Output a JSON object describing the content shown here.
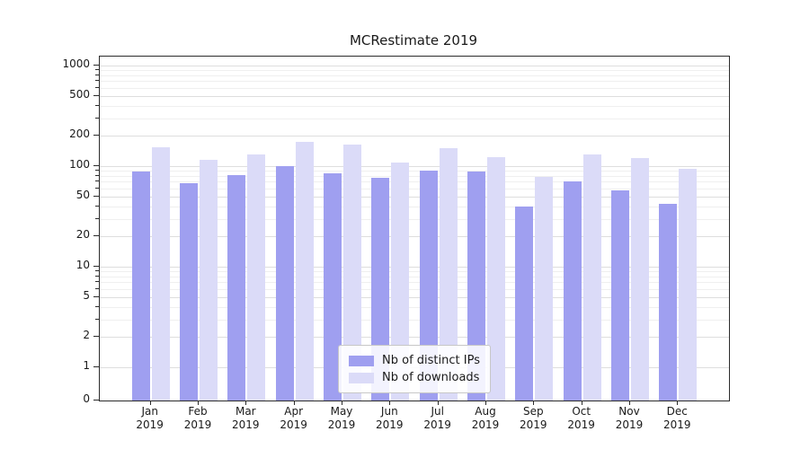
{
  "figure": {
    "title": "MCRestimate 2019",
    "background": "#ffffff"
  },
  "chart_data": {
    "type": "bar",
    "title": "MCRestimate 2019",
    "categories": [
      "Jan\n2019",
      "Feb\n2019",
      "Mar\n2019",
      "Apr\n2019",
      "May\n2019",
      "Jun\n2019",
      "Jul\n2019",
      "Aug\n2019",
      "Sep\n2019",
      "Oct\n2019",
      "Nov\n2019",
      "Dec\n2019"
    ],
    "series": [
      {
        "name": "Nb of distinct IPs",
        "color": "#9f9ff0",
        "values": [
          88,
          68,
          82,
          100,
          85,
          76,
          90,
          88,
          40,
          70,
          58,
          42
        ]
      },
      {
        "name": "Nb of downloads",
        "color": "#dbdbf8",
        "values": [
          155,
          115,
          130,
          175,
          165,
          108,
          150,
          122,
          78,
          130,
          120,
          95
        ]
      }
    ],
    "yscale": "symlog",
    "ylim": [
      0,
      1000
    ],
    "yticks": [
      0,
      1,
      2,
      5,
      10,
      20,
      50,
      100,
      200,
      500,
      1000
    ],
    "grid": true,
    "legend_position": "lower center"
  }
}
